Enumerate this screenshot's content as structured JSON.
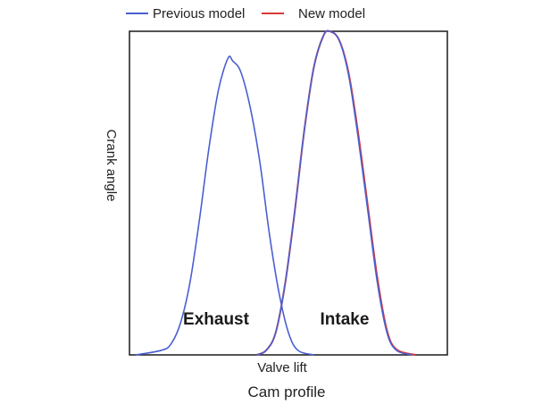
{
  "chart_data": {
    "type": "line",
    "title": "",
    "xlabel": "Valve lift",
    "ylabel": "Crank angle",
    "caption": "Cam profile",
    "xlim": [
      0,
      100
    ],
    "ylim": [
      0,
      100
    ],
    "grid": false,
    "ticks": false,
    "legend_position": "top",
    "legend": [
      {
        "name": "Previous model",
        "color": "#4a5fd0"
      },
      {
        "name": "New model",
        "color": "#d63a3a"
      }
    ],
    "annotations": [
      {
        "text": "Exhaust"
      },
      {
        "text": "Intake"
      }
    ],
    "series": [
      {
        "name": "Previous model",
        "curve": "Exhaust",
        "color": "#4a5fd0",
        "points": [
          [
            2,
            0
          ],
          [
            10,
            1.4
          ],
          [
            13,
            3.3
          ],
          [
            16,
            9.7
          ],
          [
            19,
            22.2
          ],
          [
            22,
            41.7
          ],
          [
            25,
            63.9
          ],
          [
            28,
            81.9
          ],
          [
            31,
            91.7
          ],
          [
            32.5,
            90.8
          ],
          [
            35,
            87.5
          ],
          [
            38,
            76.4
          ],
          [
            41,
            59.7
          ],
          [
            44,
            37.5
          ],
          [
            47,
            19.4
          ],
          [
            50,
            6.9
          ],
          [
            53,
            1.4
          ],
          [
            58,
            0
          ]
        ]
      },
      {
        "name": "Previous model",
        "curve": "Intake",
        "color": "#4a5fd0",
        "points": [
          [
            40,
            0
          ],
          [
            43,
            1.4
          ],
          [
            46,
            6.9
          ],
          [
            49,
            22.2
          ],
          [
            52,
            44.4
          ],
          [
            55,
            69.4
          ],
          [
            58,
            88.9
          ],
          [
            61,
            98.6
          ],
          [
            63,
            100
          ],
          [
            66,
            97.2
          ],
          [
            69,
            86.1
          ],
          [
            72,
            66.7
          ],
          [
            75,
            44.4
          ],
          [
            78,
            22.2
          ],
          [
            81,
            6.9
          ],
          [
            84,
            1.4
          ],
          [
            89,
            0
          ]
        ]
      },
      {
        "name": "New model",
        "curve": "Intake",
        "color": "#d63a3a",
        "points": [
          [
            40,
            0
          ],
          [
            43,
            1.4
          ],
          [
            46,
            6.9
          ],
          [
            49,
            22.2
          ],
          [
            52,
            44.4
          ],
          [
            55,
            69.4
          ],
          [
            58,
            88.9
          ],
          [
            61,
            98.6
          ],
          [
            63,
            100
          ],
          [
            66,
            97.2
          ],
          [
            69,
            86.8
          ],
          [
            72,
            68.1
          ],
          [
            75,
            45.8
          ],
          [
            78,
            23.6
          ],
          [
            81,
            7.6
          ],
          [
            84,
            1.7
          ],
          [
            90,
            0
          ]
        ]
      }
    ]
  }
}
